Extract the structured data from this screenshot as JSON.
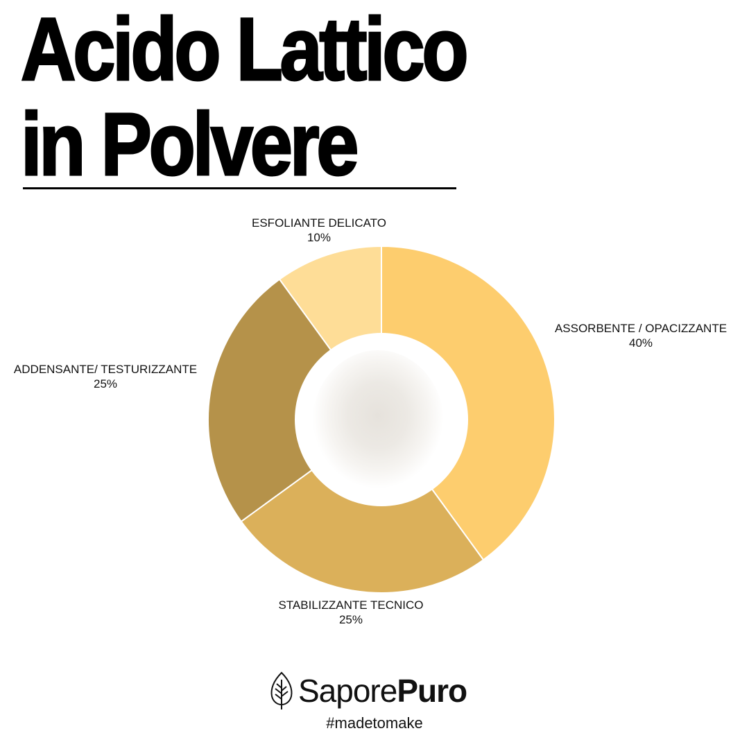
{
  "title": {
    "line1": "Acido Lattico",
    "line2": "in Polvere"
  },
  "chart_data": {
    "type": "pie",
    "variant": "donut",
    "start": "top, clockwise",
    "slices": [
      {
        "label": "ASSORBENTE / OPACIZZANTE",
        "value": 40,
        "value_label": "40%",
        "color": "#FDCD6E"
      },
      {
        "label": "STABILIZZANTE TECNICO",
        "value": 25,
        "value_label": "25%",
        "color": "#DBB05A"
      },
      {
        "label": "ADDENSANTE/ TESTURIZZANTE",
        "value": 25,
        "value_label": "25%",
        "color": "#B5924A"
      },
      {
        "label": "ESFOLIANTE DELICATO",
        "value": 10,
        "value_label": "10%",
        "color": "#FEDD97"
      }
    ]
  },
  "brand": {
    "name_regular": "Sapore",
    "name_bold": "Puro",
    "tagline": "#madetomake",
    "icon": "leaf-icon"
  }
}
